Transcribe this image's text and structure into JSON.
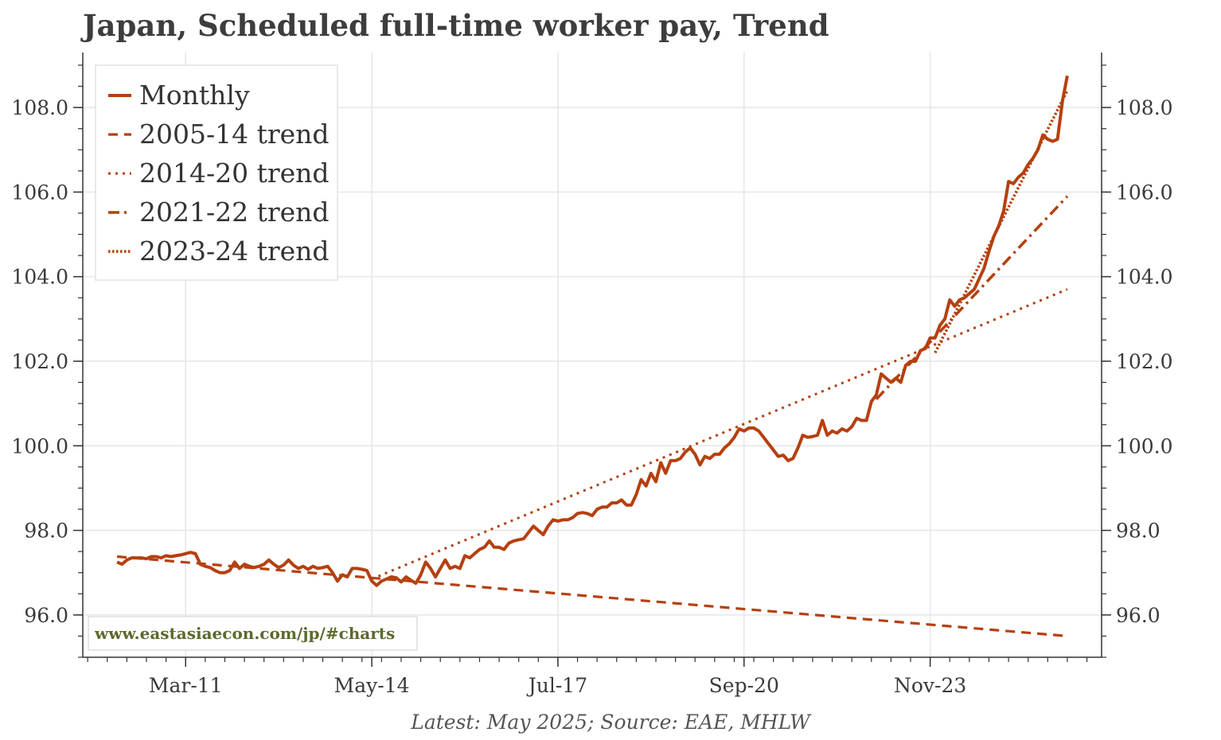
{
  "header": {
    "title": "Japan, Scheduled full-time worker pay, Trend"
  },
  "footer": {
    "caption": "Latest: May 2025; Source: EAE, MHLW"
  },
  "source_box": {
    "text": "www.eastasiaecon.com/jp/#charts"
  },
  "colors": {
    "line": "#b5400f",
    "grid": "#e6e6e6",
    "axis": "#333333",
    "source": "#5a6b2e"
  },
  "chart_data": {
    "type": "line",
    "title": "Japan, Scheduled full-time worker pay, Trend",
    "xlabel": "",
    "ylabel": "",
    "ylim": [
      95.0,
      109.3
    ],
    "xlim": [
      "2009-06",
      "2026-10"
    ],
    "x_ticks": [
      {
        "label": "Mar-11",
        "date": "2011-03"
      },
      {
        "label": "May-14",
        "date": "2014-05"
      },
      {
        "label": "Jul-17",
        "date": "2017-07"
      },
      {
        "label": "Sep-20",
        "date": "2020-09"
      },
      {
        "label": "Nov-23",
        "date": "2023-11"
      }
    ],
    "y_ticks": [
      96.0,
      98.0,
      100.0,
      102.0,
      104.0,
      106.0,
      108.0
    ],
    "y_tick_labels": [
      "96.0",
      "98.0",
      "100.0",
      "102.0",
      "104.0",
      "106.0",
      "108.0"
    ],
    "grid": true,
    "legend_position": "top-left",
    "series": [
      {
        "name": "Monthly",
        "style": "solid",
        "points": [
          [
            "2010-01",
            97.25
          ],
          [
            "2010-02",
            97.2
          ],
          [
            "2010-03",
            97.3
          ],
          [
            "2010-04",
            97.35
          ],
          [
            "2010-05",
            97.35
          ],
          [
            "2010-06",
            97.35
          ],
          [
            "2010-07",
            97.33
          ],
          [
            "2010-08",
            97.38
          ],
          [
            "2010-09",
            97.38
          ],
          [
            "2010-10",
            97.35
          ],
          [
            "2010-11",
            97.4
          ],
          [
            "2010-12",
            97.38
          ],
          [
            "2011-01",
            97.4
          ],
          [
            "2011-02",
            97.42
          ],
          [
            "2011-03",
            97.45
          ],
          [
            "2011-04",
            97.48
          ],
          [
            "2011-05",
            97.45
          ],
          [
            "2011-06",
            97.2
          ],
          [
            "2011-07",
            97.15
          ],
          [
            "2011-08",
            97.12
          ],
          [
            "2011-09",
            97.05
          ],
          [
            "2011-10",
            97.0
          ],
          [
            "2011-11",
            97.0
          ],
          [
            "2011-12",
            97.05
          ],
          [
            "2012-01",
            97.25
          ],
          [
            "2012-02",
            97.1
          ],
          [
            "2012-03",
            97.2
          ],
          [
            "2012-04",
            97.15
          ],
          [
            "2012-05",
            97.12
          ],
          [
            "2012-06",
            97.15
          ],
          [
            "2012-07",
            97.2
          ],
          [
            "2012-08",
            97.3
          ],
          [
            "2012-09",
            97.2
          ],
          [
            "2012-10",
            97.12
          ],
          [
            "2012-11",
            97.18
          ],
          [
            "2012-12",
            97.3
          ],
          [
            "2013-01",
            97.18
          ],
          [
            "2013-02",
            97.1
          ],
          [
            "2013-03",
            97.15
          ],
          [
            "2013-04",
            97.08
          ],
          [
            "2013-05",
            97.15
          ],
          [
            "2013-06",
            97.1
          ],
          [
            "2013-07",
            97.12
          ],
          [
            "2013-08",
            97.15
          ],
          [
            "2013-09",
            97.0
          ],
          [
            "2013-10",
            96.8
          ],
          [
            "2013-11",
            96.95
          ],
          [
            "2013-12",
            96.9
          ],
          [
            "2014-01",
            97.1
          ],
          [
            "2014-02",
            97.1
          ],
          [
            "2014-03",
            97.08
          ],
          [
            "2014-04",
            97.05
          ],
          [
            "2014-05",
            96.8
          ],
          [
            "2014-06",
            96.7
          ],
          [
            "2014-07",
            96.8
          ],
          [
            "2014-08",
            96.85
          ],
          [
            "2014-09",
            96.9
          ],
          [
            "2014-10",
            96.88
          ],
          [
            "2014-11",
            96.78
          ],
          [
            "2014-12",
            96.9
          ],
          [
            "2015-01",
            96.82
          ],
          [
            "2015-02",
            96.75
          ],
          [
            "2015-03",
            96.95
          ],
          [
            "2015-04",
            97.25
          ],
          [
            "2015-05",
            97.1
          ],
          [
            "2015-06",
            96.9
          ],
          [
            "2015-07",
            97.1
          ],
          [
            "2015-08",
            97.3
          ],
          [
            "2015-09",
            97.1
          ],
          [
            "2015-10",
            97.15
          ],
          [
            "2015-11",
            97.1
          ],
          [
            "2015-12",
            97.4
          ],
          [
            "2016-01",
            97.35
          ],
          [
            "2016-02",
            97.45
          ],
          [
            "2016-03",
            97.55
          ],
          [
            "2016-04",
            97.6
          ],
          [
            "2016-05",
            97.75
          ],
          [
            "2016-06",
            97.6
          ],
          [
            "2016-07",
            97.6
          ],
          [
            "2016-08",
            97.55
          ],
          [
            "2016-09",
            97.7
          ],
          [
            "2016-10",
            97.75
          ],
          [
            "2016-11",
            97.78
          ],
          [
            "2016-12",
            97.8
          ],
          [
            "2017-01",
            97.95
          ],
          [
            "2017-02",
            98.1
          ],
          [
            "2017-03",
            98.0
          ],
          [
            "2017-04",
            97.9
          ],
          [
            "2017-05",
            98.1
          ],
          [
            "2017-06",
            98.25
          ],
          [
            "2017-07",
            98.22
          ],
          [
            "2017-08",
            98.25
          ],
          [
            "2017-09",
            98.25
          ],
          [
            "2017-10",
            98.3
          ],
          [
            "2017-11",
            98.4
          ],
          [
            "2017-12",
            98.42
          ],
          [
            "2018-01",
            98.4
          ],
          [
            "2018-02",
            98.35
          ],
          [
            "2018-03",
            98.5
          ],
          [
            "2018-04",
            98.55
          ],
          [
            "2018-05",
            98.55
          ],
          [
            "2018-06",
            98.65
          ],
          [
            "2018-07",
            98.65
          ],
          [
            "2018-08",
            98.72
          ],
          [
            "2018-09",
            98.6
          ],
          [
            "2018-10",
            98.6
          ],
          [
            "2018-11",
            98.85
          ],
          [
            "2018-12",
            99.2
          ],
          [
            "2019-01",
            99.05
          ],
          [
            "2019-02",
            99.35
          ],
          [
            "2019-03",
            99.15
          ],
          [
            "2019-04",
            99.6
          ],
          [
            "2019-05",
            99.35
          ],
          [
            "2019-06",
            99.65
          ],
          [
            "2019-07",
            99.65
          ],
          [
            "2019-08",
            99.7
          ],
          [
            "2019-09",
            99.85
          ],
          [
            "2019-10",
            99.95
          ],
          [
            "2019-11",
            99.8
          ],
          [
            "2019-12",
            99.55
          ],
          [
            "2020-01",
            99.75
          ],
          [
            "2020-02",
            99.7
          ],
          [
            "2020-03",
            99.8
          ],
          [
            "2020-04",
            99.8
          ],
          [
            "2020-05",
            99.95
          ],
          [
            "2020-06",
            100.05
          ],
          [
            "2020-07",
            100.2
          ],
          [
            "2020-08",
            100.4
          ],
          [
            "2020-09",
            100.35
          ],
          [
            "2020-10",
            100.42
          ],
          [
            "2020-11",
            100.42
          ],
          [
            "2020-12",
            100.35
          ],
          [
            "2021-01",
            100.2
          ],
          [
            "2021-02",
            100.05
          ],
          [
            "2021-03",
            99.9
          ],
          [
            "2021-04",
            99.75
          ],
          [
            "2021-05",
            99.78
          ],
          [
            "2021-06",
            99.65
          ],
          [
            "2021-07",
            99.7
          ],
          [
            "2021-08",
            99.95
          ],
          [
            "2021-09",
            100.25
          ],
          [
            "2021-10",
            100.2
          ],
          [
            "2021-11",
            100.22
          ],
          [
            "2021-12",
            100.25
          ],
          [
            "2022-01",
            100.6
          ],
          [
            "2022-02",
            100.25
          ],
          [
            "2022-03",
            100.35
          ],
          [
            "2022-04",
            100.3
          ],
          [
            "2022-05",
            100.4
          ],
          [
            "2022-06",
            100.35
          ],
          [
            "2022-07",
            100.45
          ],
          [
            "2022-08",
            100.65
          ],
          [
            "2022-09",
            100.6
          ],
          [
            "2022-10",
            100.6
          ],
          [
            "2022-11",
            101.05
          ],
          [
            "2022-12",
            101.2
          ],
          [
            "2023-01",
            101.7
          ],
          [
            "2023-02",
            101.6
          ],
          [
            "2023-03",
            101.5
          ],
          [
            "2023-04",
            101.6
          ],
          [
            "2023-05",
            101.5
          ],
          [
            "2023-06",
            101.9
          ],
          [
            "2023-07",
            102.0
          ],
          [
            "2023-08",
            102.0
          ],
          [
            "2023-09",
            102.25
          ],
          [
            "2023-10",
            102.3
          ],
          [
            "2023-11",
            102.55
          ],
          [
            "2023-12",
            102.55
          ],
          [
            "2024-01",
            102.85
          ],
          [
            "2024-02",
            103.0
          ],
          [
            "2024-03",
            103.45
          ],
          [
            "2024-04",
            103.3
          ],
          [
            "2024-05",
            103.45
          ],
          [
            "2024-06",
            103.5
          ],
          [
            "2024-07",
            103.6
          ],
          [
            "2024-08",
            103.7
          ],
          [
            "2024-09",
            103.95
          ],
          [
            "2024-10",
            104.2
          ],
          [
            "2024-11",
            104.6
          ],
          [
            "2024-12",
            104.95
          ],
          [
            "2025-01",
            105.2
          ],
          [
            "2025-02",
            105.55
          ],
          [
            "2025-03",
            106.25
          ],
          [
            "2025-04",
            106.2
          ],
          [
            "2025-05",
            106.35
          ],
          [
            "2025-06",
            106.45
          ],
          [
            "2025-07",
            106.65
          ],
          [
            "2025-08",
            106.8
          ],
          [
            "2025-09",
            107.0
          ],
          [
            "2025-10",
            107.35
          ],
          [
            "2025-11",
            107.25
          ],
          [
            "2025-12",
            107.2
          ],
          [
            "2026-01",
            107.25
          ],
          [
            "2026-02",
            108.15
          ],
          [
            "2026-03",
            108.75
          ]
        ]
      },
      {
        "name": "2005-14 trend",
        "style": "dashed",
        "points": [
          [
            "2010-01",
            97.38
          ],
          [
            "2026-03",
            95.5
          ]
        ]
      },
      {
        "name": "2014-20 trend",
        "style": "dotted",
        "points": [
          [
            "2014-05",
            96.85
          ],
          [
            "2026-03",
            103.7
          ]
        ]
      },
      {
        "name": "2021-22 trend",
        "style": "dashdot",
        "points": [
          [
            "2022-12",
            101.1
          ],
          [
            "2026-03",
            105.9
          ]
        ]
      },
      {
        "name": "2023-24 trend",
        "style": "dense-dotted",
        "points": [
          [
            "2023-12",
            102.2
          ],
          [
            "2026-03",
            108.4
          ]
        ]
      }
    ]
  }
}
